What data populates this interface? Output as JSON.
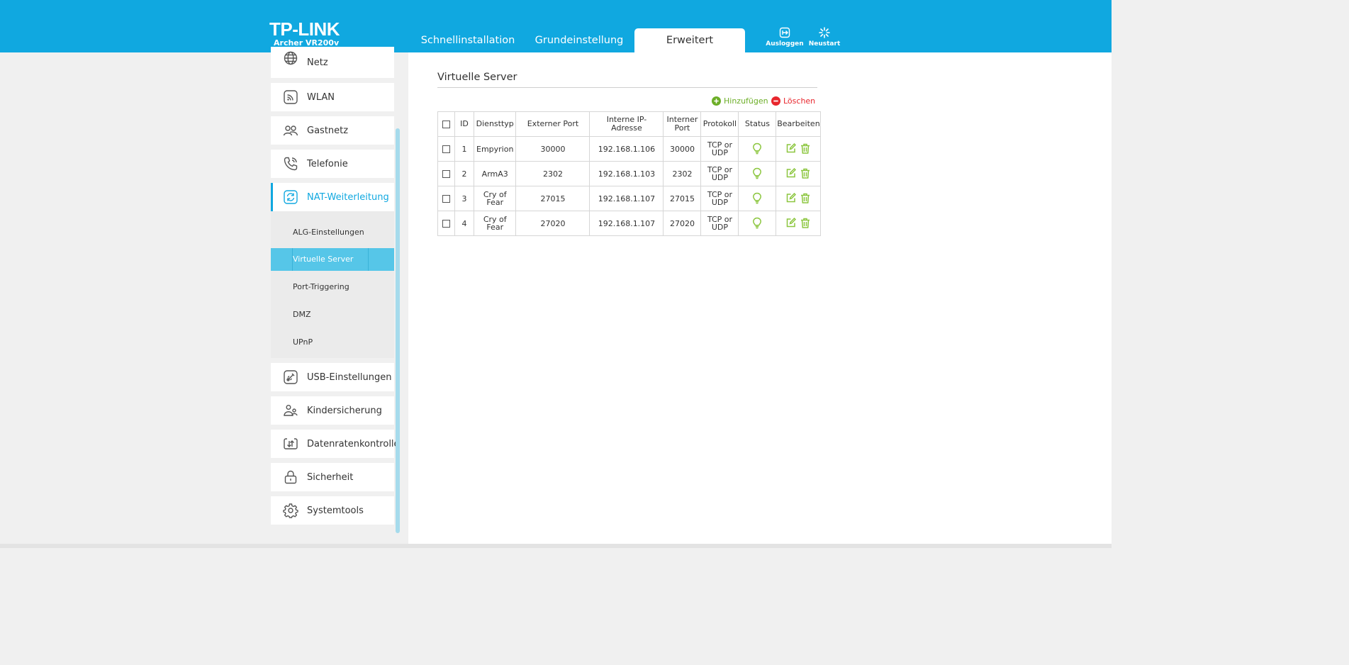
{
  "brand": {
    "logo": "TP-LINK",
    "model": "Archer VR200v"
  },
  "nav": {
    "tabs": [
      {
        "label": "Schnellinstallation",
        "active": false
      },
      {
        "label": "Grundeinstellung",
        "active": false
      },
      {
        "label": "Erweitert",
        "active": true
      }
    ],
    "logout_label": "Ausloggen",
    "reboot_label": "Neustart"
  },
  "sidebar": {
    "items": [
      {
        "label": "Netz",
        "icon": "globe-icon"
      },
      {
        "label": "WLAN",
        "icon": "wireless-icon"
      },
      {
        "label": "Gastnetz",
        "icon": "guest-network-icon"
      },
      {
        "label": "Telefonie",
        "icon": "phone-icon"
      },
      {
        "label": "NAT-Weiterleitung",
        "icon": "nat-forwarding-icon",
        "active": true
      },
      {
        "label": "USB-Einstellungen",
        "icon": "usb-settings-icon"
      },
      {
        "label": "Kindersicherung",
        "icon": "parental-control-icon"
      },
      {
        "label": "Datenratenkontrolle",
        "icon": "bandwidth-control-icon"
      },
      {
        "label": "Sicherheit",
        "icon": "lock-icon"
      },
      {
        "label": "Systemtools",
        "icon": "gear-icon"
      }
    ],
    "submenu": [
      {
        "label": "ALG-Einstellungen"
      },
      {
        "label": "Virtuelle Server",
        "active": true
      },
      {
        "label": "Port-Triggering"
      },
      {
        "label": "DMZ"
      },
      {
        "label": "UPnP"
      }
    ]
  },
  "main": {
    "title": "Virtuelle Server",
    "add_label": "Hinzufügen",
    "delete_label": "Löschen",
    "table": {
      "columns": [
        "",
        "ID",
        "Diensttyp",
        "Externer Port",
        "Interne IP-Adresse",
        "Interner Port",
        "Protokoll",
        "Status",
        "Bearbeiten"
      ],
      "rows": [
        {
          "id": "1",
          "service": "Empyrion",
          "ext_port": "30000",
          "ip": "192.168.1.106",
          "int_port": "30000",
          "protocol": "TCP or UDP",
          "status": "enabled"
        },
        {
          "id": "2",
          "service": "ArmA3",
          "ext_port": "2302",
          "ip": "192.168.1.103",
          "int_port": "2302",
          "protocol": "TCP or UDP",
          "status": "enabled"
        },
        {
          "id": "3",
          "service": "Cry of Fear",
          "ext_port": "27015",
          "ip": "192.168.1.107",
          "int_port": "27015",
          "protocol": "TCP or UDP",
          "status": "enabled"
        },
        {
          "id": "4",
          "service": "Cry of Fear",
          "ext_port": "27020",
          "ip": "192.168.1.107",
          "int_port": "27020",
          "protocol": "TCP or UDP",
          "status": "enabled"
        }
      ]
    }
  },
  "colors": {
    "brand_blue": "#10a8e0",
    "active_submenu": "#56c6e8",
    "add_green": "#6cae27",
    "delete_red": "#e8262d",
    "icon_green": "#8cc63f"
  }
}
